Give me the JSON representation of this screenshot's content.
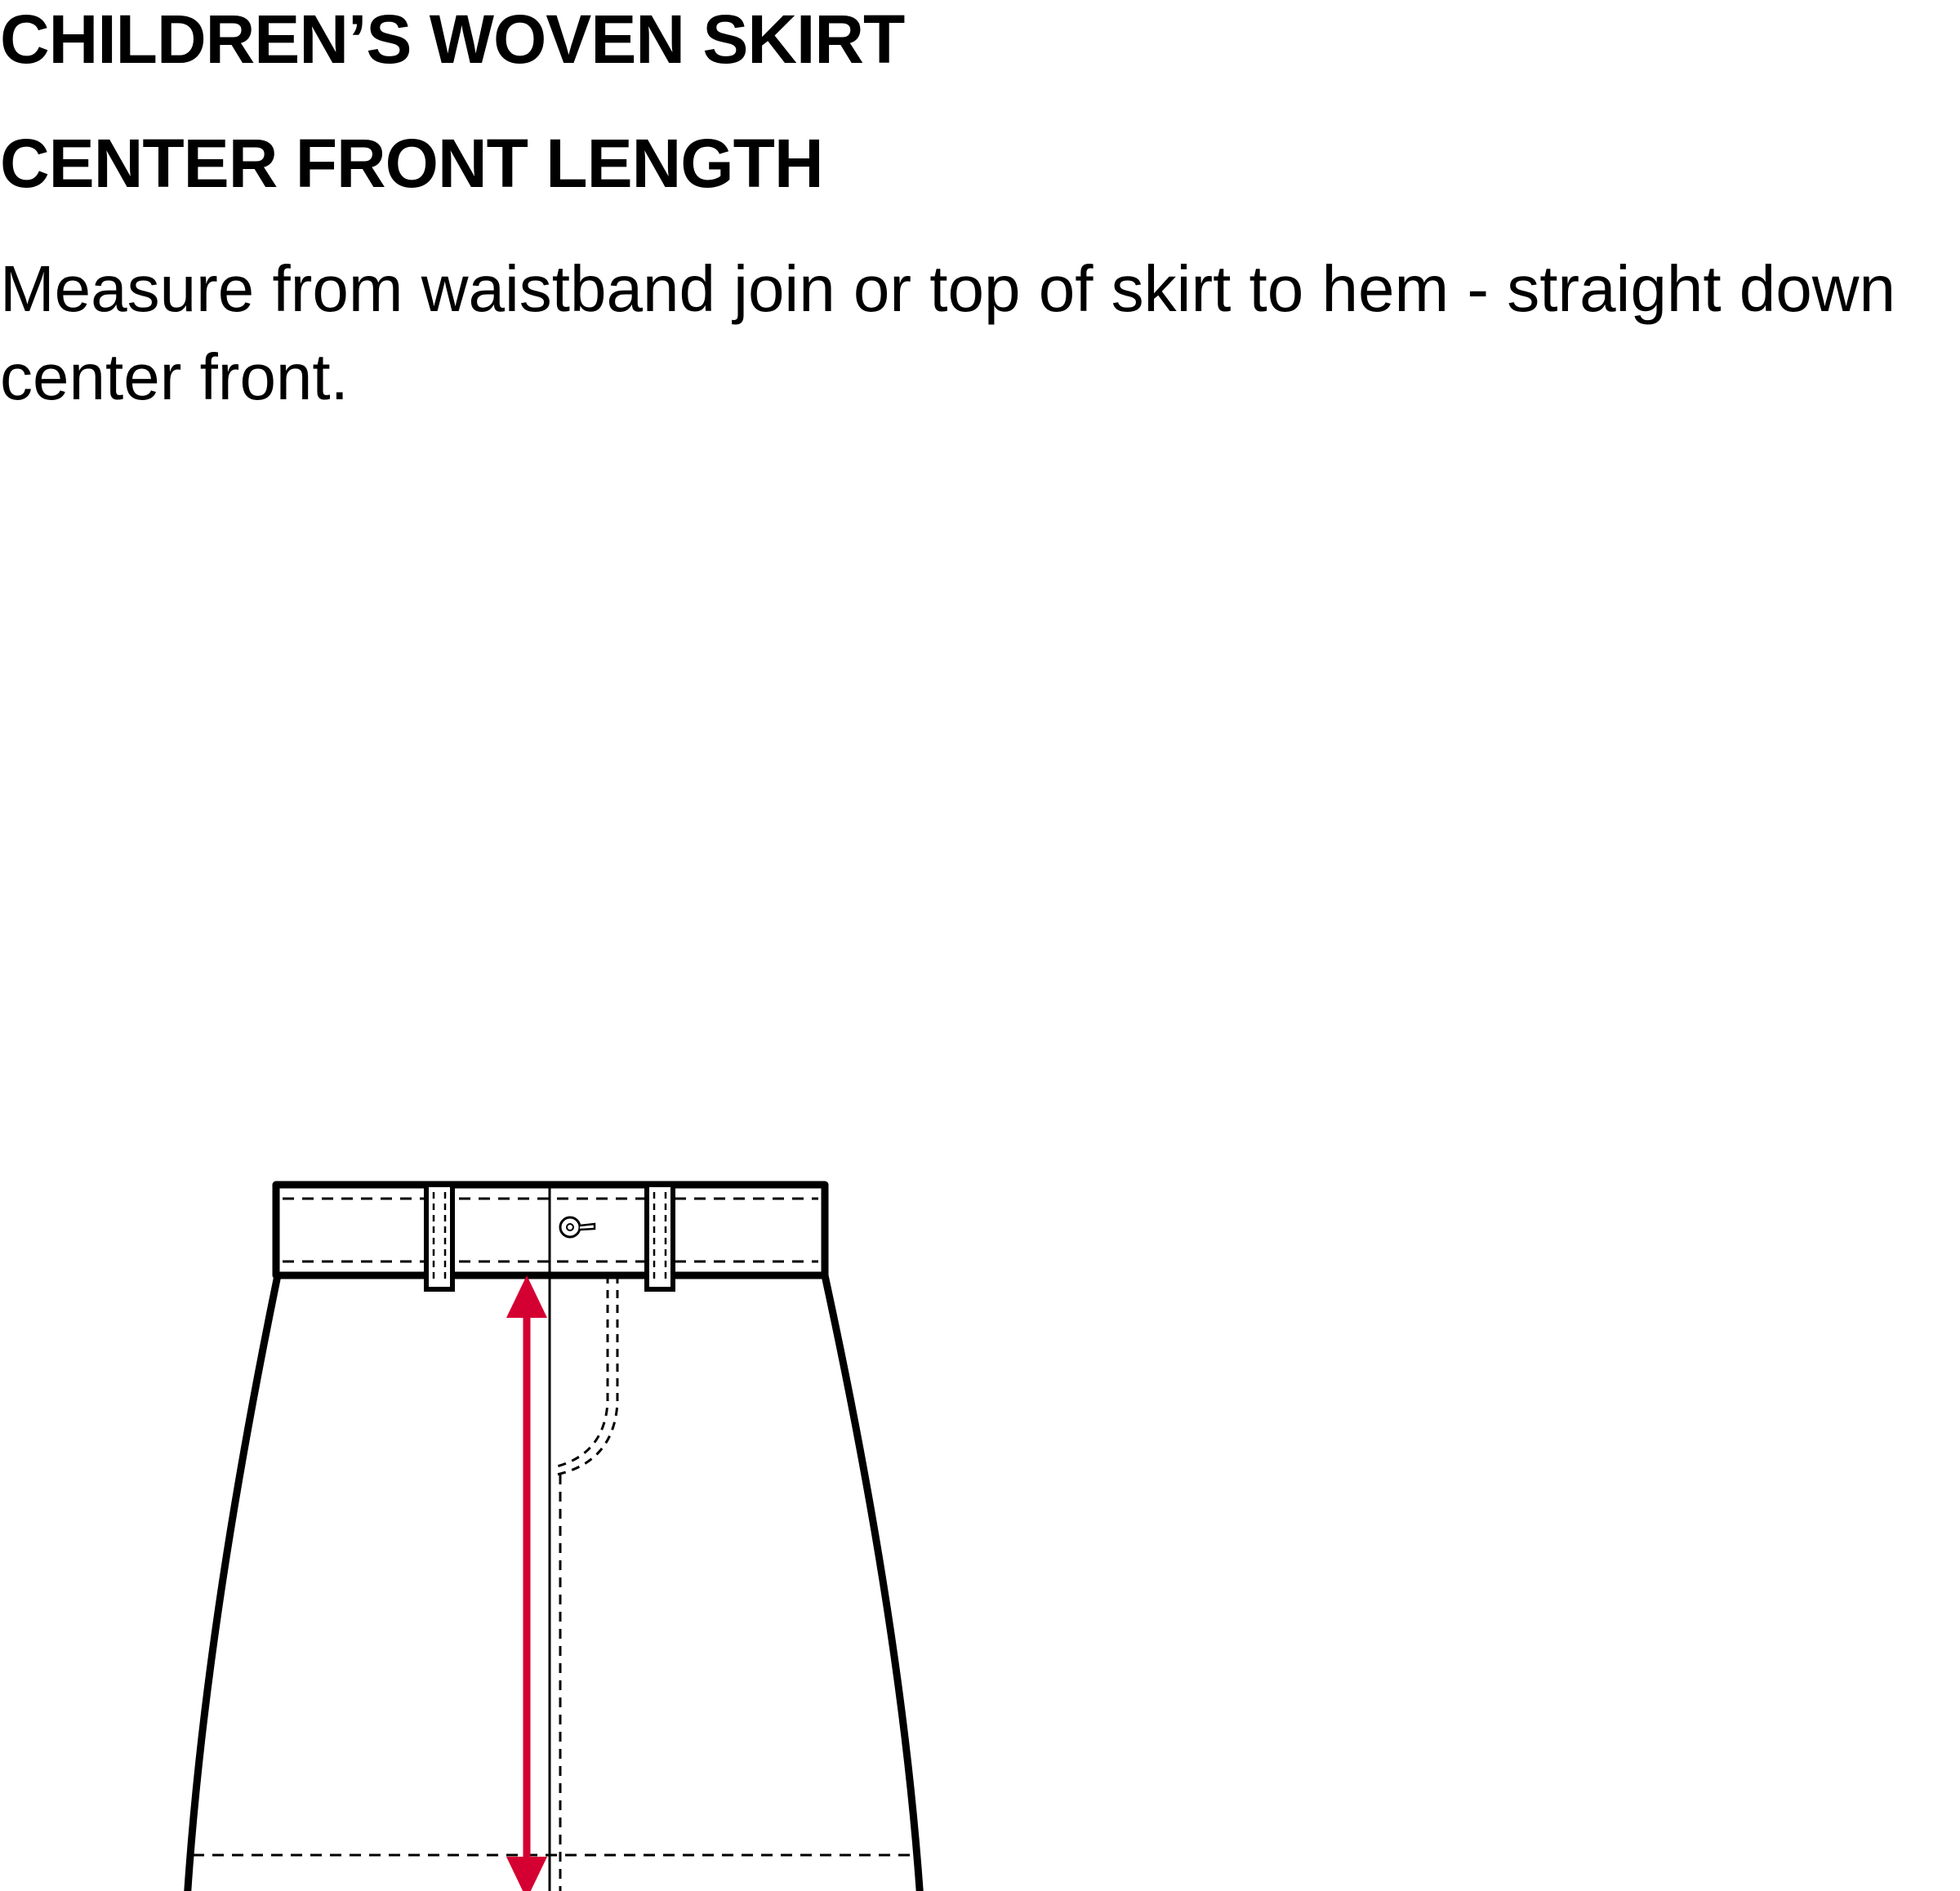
{
  "header": {
    "title": "CHILDREN’S WOVEN SKIRT",
    "subtitle": "CENTER FRONT LENGTH"
  },
  "instructions": {
    "text": "Measure from waistband join or top of skirt to hem - straight down center front."
  },
  "diagram": {
    "subject": "skirt-flat-sketch",
    "measurement_arrow_color": "#d50032",
    "outline_color": "#000000"
  }
}
